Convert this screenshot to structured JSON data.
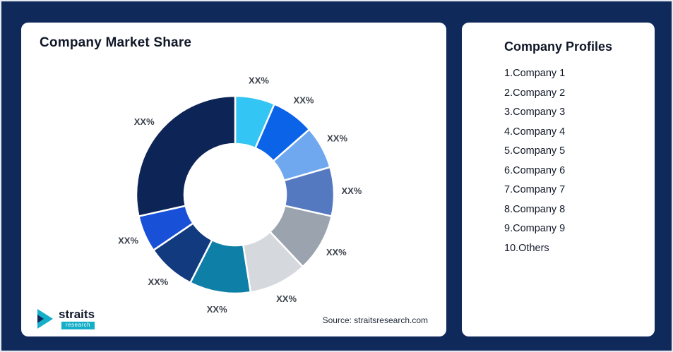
{
  "background_color": "#0f2a5a",
  "accent_color": "#14aec8",
  "left_card": {
    "title": "Company Market Share",
    "source": "Source: straitsresearch.com",
    "logo": {
      "name": "straits",
      "sub": "research"
    }
  },
  "right_card": {
    "title": "Company Profiles",
    "items": [
      "1.Company 1",
      "2.Company 2",
      "3.Company 3",
      "4.Company 4",
      "5.Company 5",
      "6.Company 6",
      "7.Company 7",
      "8.Company 8",
      "9.Company 9",
      "10.Others"
    ]
  },
  "chart_data": {
    "type": "pie",
    "donut": true,
    "title": "Company Market Share",
    "categories": [
      "Company 1",
      "Company 2",
      "Company 3",
      "Company 4",
      "Company 5",
      "Company 6",
      "Company 7",
      "Company 8",
      "Company 9",
      "Others"
    ],
    "values": [
      6.5,
      7,
      7,
      8,
      9.5,
      9.5,
      10,
      8,
      6,
      28.5
    ],
    "labels": [
      "XX%",
      "XX%",
      "XX%",
      "XX%",
      "XX%",
      "XX%",
      "XX%",
      "XX%",
      "XX%",
      "XX%"
    ],
    "colors": [
      "#33c5f3",
      "#0b64e8",
      "#70a8f0",
      "#5579c0",
      "#9ba3ae",
      "#d5d8dd",
      "#0e7fa6",
      "#123a7e",
      "#1850d8",
      "#0d2456"
    ],
    "legend": "none",
    "label_color": "#3d434d",
    "start_angle_deg": 0,
    "direction": "clockwise"
  }
}
